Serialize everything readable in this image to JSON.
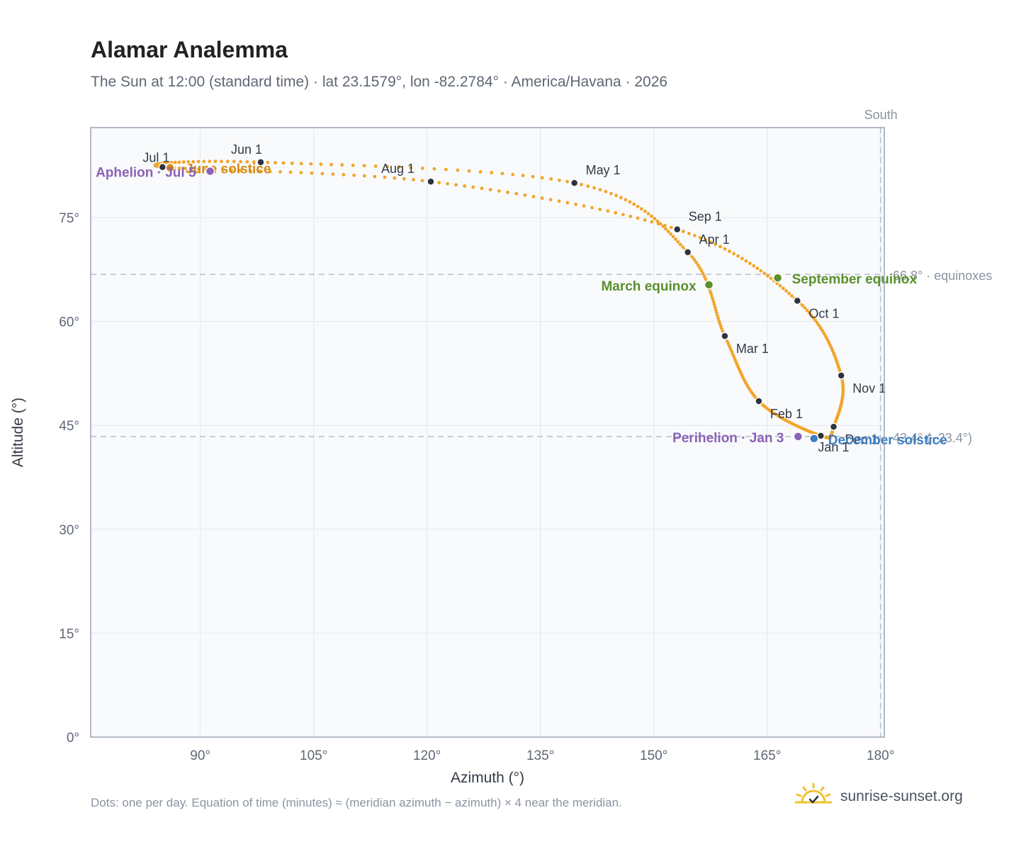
{
  "title": "Alamar Analemma",
  "subtitle": "The Sun at 12:00 (standard time) · lat 23.1579°, lon -82.2784° · America/Havana · 2026",
  "footnote": "Dots: one per day. Equation of time (minutes) ≈ (meridian azimuth − azimuth) × 4 near the meridian.",
  "brand": {
    "name": "sunrise-sunset.org",
    "icon": "sun-logo-icon"
  },
  "colors": {
    "curve": "#f2a52a",
    "month_marker": "#2d3440",
    "equinox": "#5a8f2e",
    "solstice_june": "#d68a12",
    "solstice_december": "#3d7ebf",
    "apsis": "#8b62b5",
    "plot_bg": "#f8fafc",
    "grid": "#e3e8ef",
    "reference_line": "#b6bfcc"
  },
  "chart_data": {
    "type": "scatter",
    "title": "Alamar Analemma",
    "xlabel": "Azimuth (°)",
    "ylabel": "Altitude (°)",
    "xlim": [
      75.5,
      180.5
    ],
    "ylim": [
      0,
      88
    ],
    "x_ticks": [
      90,
      105,
      120,
      135,
      150,
      165,
      180
    ],
    "y_ticks": [
      0,
      15,
      30,
      45,
      60,
      75
    ],
    "x_tick_labels": [
      "90°",
      "105°",
      "120°",
      "135°",
      "150°",
      "165°",
      "180°"
    ],
    "y_tick_labels": [
      "0°",
      "15°",
      "30°",
      "45°",
      "60°",
      "75°"
    ],
    "grid": true,
    "series_path_month_starts": [
      {
        "label": "Jan 1",
        "az": 172.1,
        "alt": 43.5
      },
      {
        "label": "Feb 1",
        "az": 163.9,
        "alt": 48.5
      },
      {
        "label": "Mar 1",
        "az": 159.4,
        "alt": 57.9
      },
      {
        "label": "Apr 1",
        "az": 154.5,
        "alt": 70.0
      },
      {
        "label": "May 1",
        "az": 139.5,
        "alt": 80.0
      },
      {
        "label": "Jun 1",
        "az": 98.0,
        "alt": 83.0
      },
      {
        "label": "Jul 1",
        "az": 85.0,
        "alt": 82.3
      },
      {
        "label": "Aug 1",
        "az": 120.5,
        "alt": 80.2
      },
      {
        "label": "Sep 1",
        "az": 153.1,
        "alt": 73.3
      },
      {
        "label": "Oct 1",
        "az": 169.0,
        "alt": 63.0
      },
      {
        "label": "Nov 1",
        "az": 174.8,
        "alt": 52.2
      },
      {
        "label": "Dec 1",
        "az": 173.8,
        "alt": 44.8
      }
    ],
    "reference_lines": [
      {
        "orientation": "horizontal",
        "value": 66.8,
        "label": "66.8° · equinoxes"
      },
      {
        "orientation": "horizontal",
        "value": 43.4,
        "label": "43.4° (−23.4°)"
      },
      {
        "orientation": "vertical",
        "value": 180,
        "label": "South"
      }
    ],
    "events": [
      {
        "label": "March equinox",
        "az": 157.3,
        "alt": 65.3,
        "kind": "equinox"
      },
      {
        "label": "September equinox",
        "az": 166.4,
        "alt": 66.3,
        "kind": "equinox"
      },
      {
        "label": "June solstice",
        "az": 86.0,
        "alt": 82.2,
        "kind": "solstice_june"
      },
      {
        "label": "December solstice",
        "az": 171.2,
        "alt": 43.1,
        "kind": "solstice_december"
      },
      {
        "label": "Perihelion · Jan 3",
        "az": 169.1,
        "alt": 43.4,
        "kind": "apsis"
      },
      {
        "label": "Aphelion · Jul 5",
        "az": 91.3,
        "alt": 81.7,
        "kind": "apsis"
      }
    ]
  }
}
